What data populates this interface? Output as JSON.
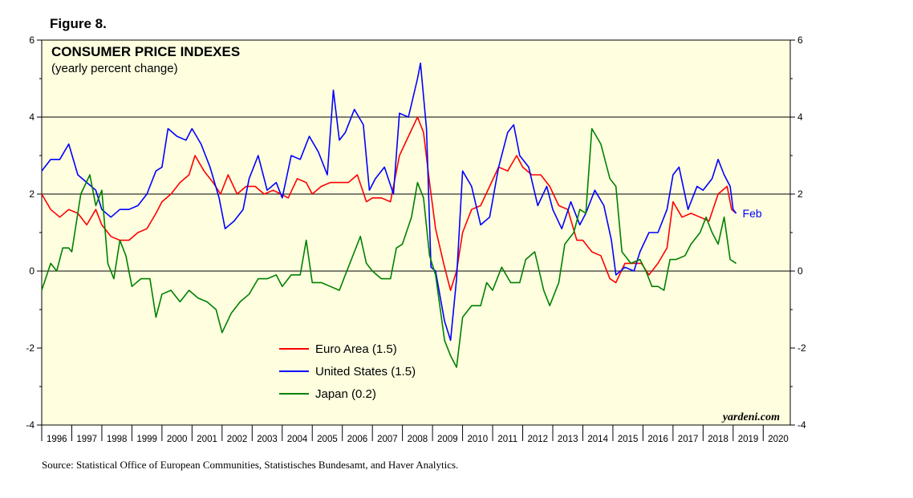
{
  "figure_label": "Figure 8.",
  "source": "Source: Statistical Office of European Communities, Statistisches Bundesamt, and Haver Analytics.",
  "watermark": "yardeni.com",
  "colors": {
    "background": "#FFFFE0",
    "euro": "#FF0000",
    "us": "#0000FF",
    "japan": "#008000"
  },
  "chart_data": {
    "type": "line",
    "title": "CONSUMER PRICE INDEXES",
    "subtitle": "(yearly percent change)",
    "xlim": [
      1996,
      2020.9
    ],
    "ylim": [
      -4,
      6
    ],
    "y_ticks": [
      -4,
      -2,
      0,
      2,
      4,
      6
    ],
    "y_tick_labels": [
      "-4",
      "-2",
      "0",
      "2",
      "4",
      "6"
    ],
    "x_tick_labels": [
      "1996",
      "1997",
      "1998",
      "1999",
      "2000",
      "2001",
      "2002",
      "2003",
      "2004",
      "2005",
      "2006",
      "2007",
      "2008",
      "2009",
      "2010",
      "2011",
      "2012",
      "2013",
      "2014",
      "2015",
      "2016",
      "2017",
      "2018",
      "2019",
      "2020"
    ],
    "gridlines_y": [
      0,
      2,
      4
    ],
    "end_annotation": "Feb",
    "legend_position": "lower-center",
    "series": [
      {
        "name": "Euro Area (1.5)",
        "color": "#FF0000",
        "points": [
          [
            1996.0,
            2.0
          ],
          [
            1996.3,
            1.6
          ],
          [
            1996.6,
            1.4
          ],
          [
            1996.9,
            1.6
          ],
          [
            1997.2,
            1.5
          ],
          [
            1997.5,
            1.2
          ],
          [
            1997.8,
            1.6
          ],
          [
            1998.0,
            1.2
          ],
          [
            1998.3,
            0.9
          ],
          [
            1998.6,
            0.8
          ],
          [
            1998.9,
            0.8
          ],
          [
            1999.2,
            1.0
          ],
          [
            1999.5,
            1.1
          ],
          [
            1999.8,
            1.5
          ],
          [
            2000.0,
            1.8
          ],
          [
            2000.3,
            2.0
          ],
          [
            2000.6,
            2.3
          ],
          [
            2000.9,
            2.5
          ],
          [
            2001.1,
            3.0
          ],
          [
            2001.4,
            2.6
          ],
          [
            2001.7,
            2.3
          ],
          [
            2001.95,
            2.0
          ],
          [
            2002.2,
            2.5
          ],
          [
            2002.5,
            2.0
          ],
          [
            2002.8,
            2.2
          ],
          [
            2003.1,
            2.2
          ],
          [
            2003.4,
            2.0
          ],
          [
            2003.7,
            2.1
          ],
          [
            2003.95,
            2.0
          ],
          [
            2004.2,
            1.9
          ],
          [
            2004.5,
            2.4
          ],
          [
            2004.8,
            2.3
          ],
          [
            2005.0,
            2.0
          ],
          [
            2005.3,
            2.2
          ],
          [
            2005.6,
            2.3
          ],
          [
            2005.9,
            2.3
          ],
          [
            2006.2,
            2.3
          ],
          [
            2006.5,
            2.5
          ],
          [
            2006.8,
            1.8
          ],
          [
            2007.0,
            1.9
          ],
          [
            2007.3,
            1.9
          ],
          [
            2007.6,
            1.8
          ],
          [
            2007.9,
            3.0
          ],
          [
            2008.2,
            3.5
          ],
          [
            2008.5,
            4.0
          ],
          [
            2008.7,
            3.6
          ],
          [
            2008.9,
            2.3
          ],
          [
            2009.1,
            1.1
          ],
          [
            2009.4,
            0.1
          ],
          [
            2009.6,
            -0.5
          ],
          [
            2009.8,
            0.0
          ],
          [
            2010.0,
            1.0
          ],
          [
            2010.3,
            1.6
          ],
          [
            2010.6,
            1.7
          ],
          [
            2010.9,
            2.2
          ],
          [
            2011.2,
            2.7
          ],
          [
            2011.5,
            2.6
          ],
          [
            2011.8,
            3.0
          ],
          [
            2012.0,
            2.7
          ],
          [
            2012.3,
            2.5
          ],
          [
            2012.6,
            2.5
          ],
          [
            2012.9,
            2.2
          ],
          [
            2013.2,
            1.7
          ],
          [
            2013.5,
            1.6
          ],
          [
            2013.8,
            0.8
          ],
          [
            2014.0,
            0.8
          ],
          [
            2014.3,
            0.5
          ],
          [
            2014.6,
            0.4
          ],
          [
            2014.9,
            -0.2
          ],
          [
            2015.1,
            -0.3
          ],
          [
            2015.4,
            0.2
          ],
          [
            2015.7,
            0.2
          ],
          [
            2015.95,
            0.2
          ],
          [
            2016.2,
            -0.1
          ],
          [
            2016.5,
            0.2
          ],
          [
            2016.8,
            0.6
          ],
          [
            2017.0,
            1.8
          ],
          [
            2017.3,
            1.4
          ],
          [
            2017.6,
            1.5
          ],
          [
            2017.9,
            1.4
          ],
          [
            2018.2,
            1.3
          ],
          [
            2018.5,
            2.0
          ],
          [
            2018.8,
            2.2
          ],
          [
            2018.95,
            1.6
          ],
          [
            2019.1,
            1.5
          ]
        ]
      },
      {
        "name": "United States (1.5)",
        "color": "#0000FF",
        "points": [
          [
            1996.0,
            2.6
          ],
          [
            1996.3,
            2.9
          ],
          [
            1996.6,
            2.9
          ],
          [
            1996.9,
            3.3
          ],
          [
            1997.2,
            2.5
          ],
          [
            1997.5,
            2.3
          ],
          [
            1997.8,
            2.1
          ],
          [
            1998.0,
            1.6
          ],
          [
            1998.3,
            1.4
          ],
          [
            1998.6,
            1.6
          ],
          [
            1998.9,
            1.6
          ],
          [
            1999.2,
            1.7
          ],
          [
            1999.5,
            2.0
          ],
          [
            1999.8,
            2.6
          ],
          [
            2000.0,
            2.7
          ],
          [
            2000.2,
            3.7
          ],
          [
            2000.5,
            3.5
          ],
          [
            2000.8,
            3.4
          ],
          [
            2001.0,
            3.7
          ],
          [
            2001.3,
            3.3
          ],
          [
            2001.6,
            2.7
          ],
          [
            2001.9,
            1.9
          ],
          [
            2002.1,
            1.1
          ],
          [
            2002.4,
            1.3
          ],
          [
            2002.7,
            1.6
          ],
          [
            2002.9,
            2.4
          ],
          [
            2003.2,
            3.0
          ],
          [
            2003.5,
            2.1
          ],
          [
            2003.8,
            2.3
          ],
          [
            2004.0,
            1.9
          ],
          [
            2004.3,
            3.0
          ],
          [
            2004.6,
            2.9
          ],
          [
            2004.9,
            3.5
          ],
          [
            2005.2,
            3.1
          ],
          [
            2005.5,
            2.5
          ],
          [
            2005.7,
            4.7
          ],
          [
            2005.9,
            3.4
          ],
          [
            2006.1,
            3.6
          ],
          [
            2006.4,
            4.2
          ],
          [
            2006.7,
            3.8
          ],
          [
            2006.9,
            2.1
          ],
          [
            2007.1,
            2.4
          ],
          [
            2007.4,
            2.7
          ],
          [
            2007.7,
            2.0
          ],
          [
            2007.9,
            4.1
          ],
          [
            2008.2,
            4.0
          ],
          [
            2008.5,
            5.0
          ],
          [
            2008.6,
            5.4
          ],
          [
            2008.8,
            3.7
          ],
          [
            2008.95,
            0.1
          ],
          [
            2009.1,
            0.0
          ],
          [
            2009.4,
            -1.3
          ],
          [
            2009.6,
            -1.8
          ],
          [
            2009.8,
            -0.2
          ],
          [
            2010.0,
            2.6
          ],
          [
            2010.3,
            2.2
          ],
          [
            2010.6,
            1.2
          ],
          [
            2010.9,
            1.4
          ],
          [
            2011.2,
            2.7
          ],
          [
            2011.5,
            3.6
          ],
          [
            2011.7,
            3.8
          ],
          [
            2011.9,
            3.0
          ],
          [
            2012.2,
            2.7
          ],
          [
            2012.5,
            1.7
          ],
          [
            2012.8,
            2.2
          ],
          [
            2013.0,
            1.6
          ],
          [
            2013.3,
            1.1
          ],
          [
            2013.6,
            1.8
          ],
          [
            2013.9,
            1.2
          ],
          [
            2014.1,
            1.5
          ],
          [
            2014.4,
            2.1
          ],
          [
            2014.7,
            1.7
          ],
          [
            2014.95,
            0.8
          ],
          [
            2015.1,
            -0.1
          ],
          [
            2015.4,
            0.1
          ],
          [
            2015.7,
            0.0
          ],
          [
            2015.9,
            0.5
          ],
          [
            2016.2,
            1.0
          ],
          [
            2016.5,
            1.0
          ],
          [
            2016.8,
            1.6
          ],
          [
            2017.0,
            2.5
          ],
          [
            2017.2,
            2.7
          ],
          [
            2017.5,
            1.6
          ],
          [
            2017.8,
            2.2
          ],
          [
            2018.0,
            2.1
          ],
          [
            2018.3,
            2.4
          ],
          [
            2018.5,
            2.9
          ],
          [
            2018.7,
            2.5
          ],
          [
            2018.9,
            2.2
          ],
          [
            2019.0,
            1.6
          ],
          [
            2019.1,
            1.5
          ]
        ]
      },
      {
        "name": "Japan (0.2)",
        "color": "#008000",
        "points": [
          [
            1996.0,
            -0.5
          ],
          [
            1996.3,
            0.2
          ],
          [
            1996.5,
            0.0
          ],
          [
            1996.7,
            0.6
          ],
          [
            1996.9,
            0.6
          ],
          [
            1997.0,
            0.5
          ],
          [
            1997.3,
            2.0
          ],
          [
            1997.6,
            2.5
          ],
          [
            1997.8,
            1.7
          ],
          [
            1998.0,
            2.1
          ],
          [
            1998.2,
            0.2
          ],
          [
            1998.4,
            -0.2
          ],
          [
            1998.6,
            0.8
          ],
          [
            1998.8,
            0.4
          ],
          [
            1999.0,
            -0.4
          ],
          [
            1999.3,
            -0.2
          ],
          [
            1999.6,
            -0.2
          ],
          [
            1999.8,
            -1.2
          ],
          [
            2000.0,
            -0.6
          ],
          [
            2000.3,
            -0.5
          ],
          [
            2000.6,
            -0.8
          ],
          [
            2000.9,
            -0.5
          ],
          [
            2001.2,
            -0.7
          ],
          [
            2001.5,
            -0.8
          ],
          [
            2001.8,
            -1.0
          ],
          [
            2002.0,
            -1.6
          ],
          [
            2002.3,
            -1.1
          ],
          [
            2002.6,
            -0.8
          ],
          [
            2002.9,
            -0.6
          ],
          [
            2003.2,
            -0.2
          ],
          [
            2003.5,
            -0.2
          ],
          [
            2003.8,
            -0.1
          ],
          [
            2004.0,
            -0.4
          ],
          [
            2004.3,
            -0.1
          ],
          [
            2004.6,
            -0.1
          ],
          [
            2004.8,
            0.8
          ],
          [
            2005.0,
            -0.3
          ],
          [
            2005.3,
            -0.3
          ],
          [
            2005.6,
            -0.4
          ],
          [
            2005.9,
            -0.5
          ],
          [
            2006.1,
            -0.1
          ],
          [
            2006.4,
            0.5
          ],
          [
            2006.6,
            0.9
          ],
          [
            2006.8,
            0.2
          ],
          [
            2007.0,
            0.0
          ],
          [
            2007.3,
            -0.2
          ],
          [
            2007.6,
            -0.2
          ],
          [
            2007.8,
            0.6
          ],
          [
            2008.0,
            0.7
          ],
          [
            2008.3,
            1.4
          ],
          [
            2008.5,
            2.3
          ],
          [
            2008.7,
            1.9
          ],
          [
            2008.9,
            0.4
          ],
          [
            2009.1,
            -0.1
          ],
          [
            2009.4,
            -1.8
          ],
          [
            2009.6,
            -2.2
          ],
          [
            2009.8,
            -2.5
          ],
          [
            2010.0,
            -1.2
          ],
          [
            2010.3,
            -0.9
          ],
          [
            2010.6,
            -0.9
          ],
          [
            2010.8,
            -0.3
          ],
          [
            2011.0,
            -0.5
          ],
          [
            2011.3,
            0.1
          ],
          [
            2011.6,
            -0.3
          ],
          [
            2011.9,
            -0.3
          ],
          [
            2012.1,
            0.3
          ],
          [
            2012.4,
            0.5
          ],
          [
            2012.7,
            -0.5
          ],
          [
            2012.9,
            -0.9
          ],
          [
            2013.2,
            -0.3
          ],
          [
            2013.4,
            0.7
          ],
          [
            2013.7,
            1.0
          ],
          [
            2013.9,
            1.6
          ],
          [
            2014.1,
            1.5
          ],
          [
            2014.3,
            3.7
          ],
          [
            2014.6,
            3.3
          ],
          [
            2014.9,
            2.4
          ],
          [
            2015.1,
            2.2
          ],
          [
            2015.3,
            0.5
          ],
          [
            2015.6,
            0.2
          ],
          [
            2015.9,
            0.3
          ],
          [
            2016.1,
            0.0
          ],
          [
            2016.3,
            -0.4
          ],
          [
            2016.5,
            -0.4
          ],
          [
            2016.7,
            -0.5
          ],
          [
            2016.9,
            0.3
          ],
          [
            2017.1,
            0.3
          ],
          [
            2017.4,
            0.4
          ],
          [
            2017.6,
            0.7
          ],
          [
            2017.9,
            1.0
          ],
          [
            2018.1,
            1.4
          ],
          [
            2018.3,
            1.0
          ],
          [
            2018.5,
            0.7
          ],
          [
            2018.7,
            1.4
          ],
          [
            2018.9,
            0.3
          ],
          [
            2019.1,
            0.2
          ]
        ]
      }
    ]
  }
}
